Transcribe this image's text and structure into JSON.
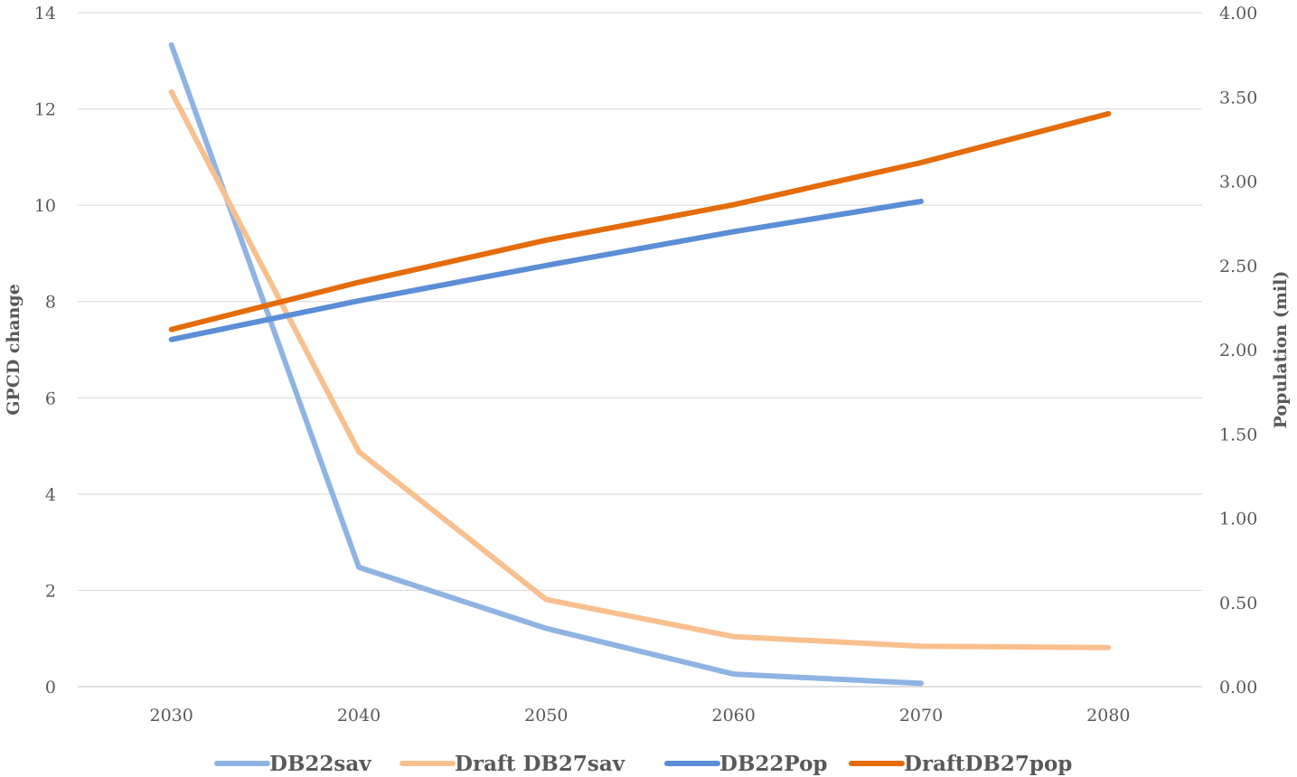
{
  "chart_data": {
    "type": "line",
    "categories": [
      "2030",
      "2040",
      "2050",
      "2060",
      "2070",
      "2080"
    ],
    "y_left": {
      "label": "GPCD change",
      "range": [
        0,
        14
      ],
      "ticks": [
        "0",
        "2",
        "4",
        "6",
        "8",
        "10",
        "12",
        "14"
      ],
      "tick_values": [
        0,
        2,
        4,
        6,
        8,
        10,
        12,
        14
      ]
    },
    "y_right": {
      "label": "Population (mil)",
      "range": [
        0,
        4
      ],
      "ticks": [
        "0.00",
        "0.50",
        "1.00",
        "1.50",
        "2.00",
        "2.50",
        "3.00",
        "3.50",
        "4.00"
      ],
      "tick_values": [
        0,
        0.5,
        1,
        1.5,
        2,
        2.5,
        3,
        3.5,
        4
      ]
    },
    "grid": true,
    "legend_position": "bottom",
    "series": [
      {
        "name": "DB22sav",
        "axis": "left",
        "color": "#8FB4E3",
        "values": [
          13.33,
          2.48,
          1.21,
          0.26,
          0.07,
          null
        ]
      },
      {
        "name": "Draft DB27sav",
        "axis": "left",
        "color": "#F8C08F",
        "values": [
          12.35,
          4.88,
          1.81,
          1.04,
          0.84,
          0.81
        ]
      },
      {
        "name": "DB22Pop",
        "axis": "right",
        "color": "#5B8ED6",
        "values": [
          2.06,
          2.29,
          2.5,
          2.7,
          2.88,
          null
        ]
      },
      {
        "name": "DraftDB27pop",
        "axis": "right",
        "color": "#E46C0A",
        "values": [
          2.12,
          2.4,
          2.65,
          2.86,
          3.11,
          3.4
        ]
      }
    ]
  }
}
